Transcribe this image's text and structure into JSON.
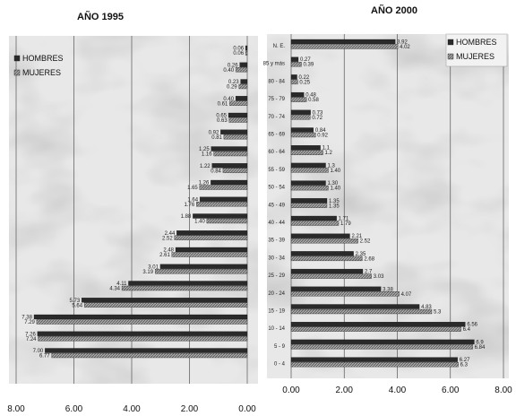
{
  "chart_data": [
    {
      "type": "bar",
      "orientation": "horizontal",
      "title": "AÑO 1995",
      "xlim": [
        0,
        8
      ],
      "x_reversed": true,
      "x_ticks": [
        "8.00",
        "6.00",
        "4.00",
        "2.00",
        "0.00"
      ],
      "grid": true,
      "legend": "top-left",
      "series": [
        {
          "name": "HOMBRES",
          "color": "#2a2a2a",
          "values": [
            0.06,
            0.26,
            0.23,
            0.4,
            0.65,
            0.92,
            1.25,
            1.22,
            1.26,
            1.64,
            1.88,
            2.44,
            2.48,
            3.01,
            4.11,
            5.73,
            7.38,
            7.26,
            7.0
          ]
        },
        {
          "name": "MUJERES",
          "color": "#8a8a8a",
          "values": [
            0.06,
            0.4,
            0.29,
            0.61,
            0.63,
            0.81,
            1.16,
            0.84,
            1.65,
            1.76,
            1.4,
            2.52,
            2.61,
            3.19,
            4.34,
            5.64,
            7.29,
            7.24,
            6.77
          ]
        }
      ],
      "value_labels_hombres": [
        "0.06",
        "0.26",
        "0.23",
        "0.40",
        "0.65",
        "0.92",
        "1.25",
        "1.22",
        "1.26",
        "1.64",
        "1.88",
        "2.44",
        "2.48",
        "3.01",
        "4.11",
        "5.73",
        "7.38",
        "7.26",
        "7.00"
      ],
      "value_labels_mujeres": [
        "0.06",
        "0.40",
        "0.29",
        "0.61",
        "0.63",
        "0.81",
        "1.16",
        "0.84",
        "1.65",
        "1.76",
        "1.40",
        "2.52",
        "2.61",
        "3.19",
        "4.34",
        "5.64",
        "7.29",
        "7.24",
        "6.77"
      ]
    },
    {
      "type": "bar",
      "orientation": "horizontal",
      "title": "AÑO 2000",
      "xlim": [
        0,
        8
      ],
      "x_ticks": [
        "0.00",
        "2.00",
        "4.00",
        "6.00",
        "8.00"
      ],
      "grid": true,
      "legend": "top-right",
      "categories": [
        "N. E.",
        "85 y más",
        "80 - 84",
        "75 - 79",
        "70 - 74",
        "65 - 69",
        "60 - 64",
        "55 - 59",
        "50 - 54",
        "45 - 49",
        "40 - 44",
        "35 - 39",
        "30 - 34",
        "25 - 29",
        "20 - 24",
        "15 - 19",
        "10 - 14",
        "5 - 9",
        "0 - 4"
      ],
      "series": [
        {
          "name": "HOMBRES",
          "color": "#2a2a2a",
          "values": [
            3.92,
            0.27,
            0.22,
            0.48,
            0.73,
            0.84,
            1.1,
            1.3,
            1.3,
            1.35,
            1.71,
            2.21,
            2.35,
            2.7,
            3.38,
            4.83,
            6.56,
            6.9,
            6.27
          ]
        },
        {
          "name": "MUJERES",
          "color": "#8a8a8a",
          "values": [
            4.02,
            0.39,
            0.25,
            0.58,
            0.72,
            0.92,
            1.2,
            1.4,
            1.4,
            1.35,
            1.79,
            2.52,
            2.68,
            3.03,
            4.07,
            5.3,
            6.4,
            6.84,
            6.3
          ]
        }
      ],
      "value_labels_hombres": [
        "3.92",
        "0.27",
        "0.22",
        "0.48",
        "0.73",
        "0.84",
        "1.1",
        "1.3",
        "1.30",
        "1.35",
        "1.71",
        "2.21",
        "2.35",
        "2.7",
        "3.38",
        "4.83",
        "6.56",
        "6.9",
        "6.27"
      ],
      "value_labels_mujeres": [
        "4.02",
        "0.39",
        "0.25",
        "0.58",
        "0.72",
        "0.92",
        "1.2",
        "1.40",
        "1.40",
        "1.35",
        "1.79",
        "2.52",
        "2.68",
        "3.03",
        "4.07",
        "5.3",
        "6.4",
        "6.84",
        "6.3"
      ]
    }
  ]
}
